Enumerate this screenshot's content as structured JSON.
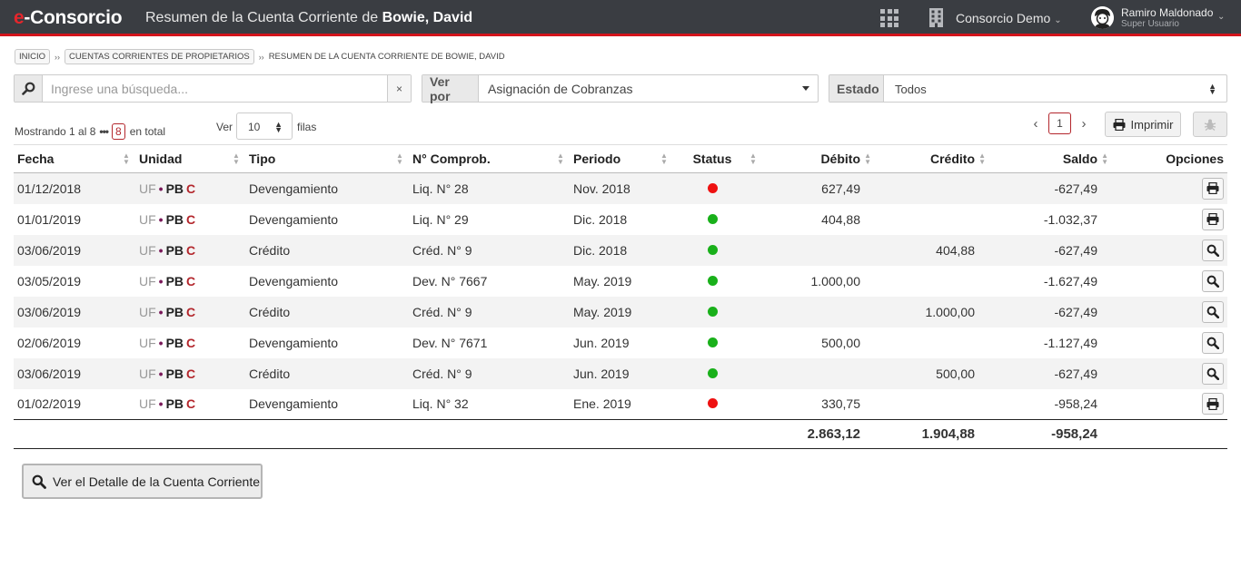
{
  "header": {
    "brand_e": "e",
    "brand_rest": "-Consorcio",
    "title_prefix": "Resumen de la Cuenta Corriente de ",
    "title_name": "Bowie, David",
    "consorcio": "Consorcio Demo",
    "user_name": "Ramiro Maldonado",
    "user_role": "Super Usuario"
  },
  "breadcrumb": [
    "INICIO",
    "CUENTAS CORRIENTES DE PROPIETARIOS",
    "RESUMEN DE LA CUENTA CORRIENTE DE BOWIE, DAVID"
  ],
  "search": {
    "placeholder": "Ingrese una búsqueda...",
    "value": "",
    "clear": "×"
  },
  "verpor": {
    "label": "Ver por",
    "value": "Asignación de Cobranzas"
  },
  "estado": {
    "label": "Estado",
    "value": "Todos"
  },
  "info": {
    "showing": "Mostrando 1 al 8",
    "total": "8",
    "total_suffix": "en total",
    "ver_label": "Ver",
    "page_size": "10",
    "filas_label": "filas",
    "current_page": "1",
    "print_label": "Imprimir"
  },
  "table": {
    "headers": [
      "Fecha",
      "Unidad",
      "Tipo",
      "N° Comprob.",
      "Periodo",
      "Status",
      "Débito",
      "Crédito",
      "Saldo",
      "Opciones"
    ],
    "rows": [
      {
        "fecha": "01/12/2018",
        "uf": "UF",
        "pb": "PB",
        "c": "C",
        "tipo": "Devengamiento",
        "comprob": "Liq. N° 28",
        "periodo": "Nov. 2018",
        "status_color": "#ee1111",
        "debito": "627,49",
        "credito": "",
        "saldo": "-627,49",
        "opcion": "print-icon"
      },
      {
        "fecha": "01/01/2019",
        "uf": "UF",
        "pb": "PB",
        "c": "C",
        "tipo": "Devengamiento",
        "comprob": "Liq. N° 29",
        "periodo": "Dic. 2018",
        "status_color": "#19b01a",
        "debito": "404,88",
        "credito": "",
        "saldo": "-1.032,37",
        "opcion": "print-icon"
      },
      {
        "fecha": "03/06/2019",
        "uf": "UF",
        "pb": "PB",
        "c": "C",
        "tipo": "Crédito",
        "comprob": "Créd. N° 9",
        "periodo": "Dic. 2018",
        "status_color": "#19b01a",
        "debito": "",
        "credito": "404,88",
        "saldo": "-627,49",
        "opcion": "magnifier-icon"
      },
      {
        "fecha": "03/05/2019",
        "uf": "UF",
        "pb": "PB",
        "c": "C",
        "tipo": "Devengamiento",
        "comprob": "Dev. N° 7667",
        "periodo": "May. 2019",
        "status_color": "#19b01a",
        "debito": "1.000,00",
        "credito": "",
        "saldo": "-1.627,49",
        "opcion": "magnifier-icon"
      },
      {
        "fecha": "03/06/2019",
        "uf": "UF",
        "pb": "PB",
        "c": "C",
        "tipo": "Crédito",
        "comprob": "Créd. N° 9",
        "periodo": "May. 2019",
        "status_color": "#19b01a",
        "debito": "",
        "credito": "1.000,00",
        "saldo": "-627,49",
        "opcion": "magnifier-icon"
      },
      {
        "fecha": "02/06/2019",
        "uf": "UF",
        "pb": "PB",
        "c": "C",
        "tipo": "Devengamiento",
        "comprob": "Dev. N° 7671",
        "periodo": "Jun. 2019",
        "status_color": "#19b01a",
        "debito": "500,00",
        "credito": "",
        "saldo": "-1.127,49",
        "opcion": "magnifier-icon"
      },
      {
        "fecha": "03/06/2019",
        "uf": "UF",
        "pb": "PB",
        "c": "C",
        "tipo": "Crédito",
        "comprob": "Créd. N° 9",
        "periodo": "Jun. 2019",
        "status_color": "#19b01a",
        "debito": "",
        "credito": "500,00",
        "saldo": "-627,49",
        "opcion": "magnifier-icon"
      },
      {
        "fecha": "01/02/2019",
        "uf": "UF",
        "pb": "PB",
        "c": "C",
        "tipo": "Devengamiento",
        "comprob": "Liq. N° 32",
        "periodo": "Ene. 2019",
        "status_color": "#ee1111",
        "debito": "330,75",
        "credito": "",
        "saldo": "-958,24",
        "opcion": "print-icon"
      }
    ],
    "totals": {
      "debito": "2.863,12",
      "credito": "1.904,88",
      "saldo": "-958,24"
    }
  },
  "detail_button": "Ver el Detalle de la Cuenta Corriente",
  "colors": {
    "accent": "#d3141b",
    "topbar": "#3a3d42",
    "status_ok": "#19b01a",
    "status_error": "#ee1111"
  }
}
